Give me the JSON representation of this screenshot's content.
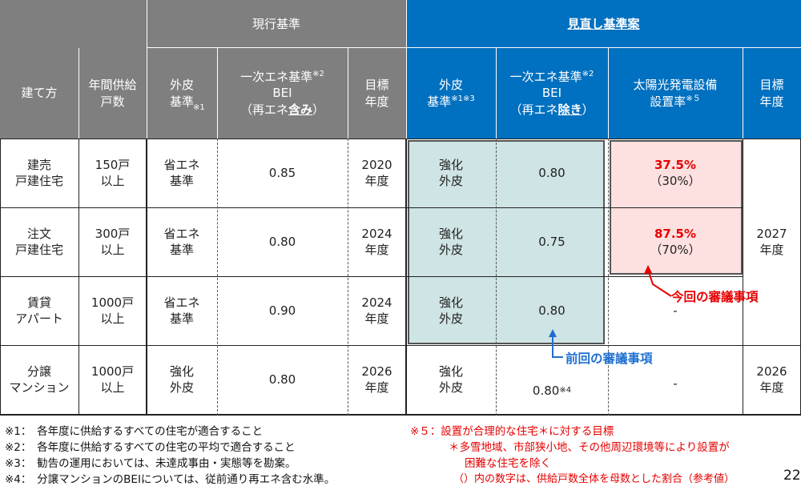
{
  "header": {
    "current_group": "現行基準",
    "revised_group": "見直し基準案",
    "cols": {
      "build_type": "建て方",
      "annual_supply": "年間供給\n戸数",
      "envelope_current": "外皮\n基準",
      "envelope_current_sup": "※1",
      "primary_energy_current_l1": "一次エネ基準",
      "primary_energy_current_sup": "※2",
      "primary_energy_current_l2": "BEI",
      "primary_energy_current_l3_pre": "（再エネ",
      "primary_energy_current_l3_em": "含み",
      "primary_energy_current_l3_post": "）",
      "target_year_current": "目標\n年度",
      "envelope_revised": "外皮\n基準",
      "envelope_revised_sup": "※1※3",
      "primary_energy_revised_l1": "一次エネ基準",
      "primary_energy_revised_sup": "※2",
      "primary_energy_revised_l2": "BEI",
      "primary_energy_revised_l3_pre": "（再エネ",
      "primary_energy_revised_l3_em": "除き",
      "primary_energy_revised_l3_post": "）",
      "solar_rate_l1": "太陽光発電設備",
      "solar_rate_l2": "設置率",
      "solar_rate_sup": "※５",
      "target_year_revised": "目標\n年度"
    }
  },
  "rows": [
    {
      "type": "建売\n戸建住宅",
      "supply": "150戸\n以上",
      "env_cur": "省エネ\n基準",
      "bei_cur": "0.85",
      "year_cur": "2020\n年度",
      "env_rev": "強化\n外皮",
      "bei_rev": "0.80",
      "solar": "37.5%",
      "solar_sub": "（30%）"
    },
    {
      "type": "注文\n戸建住宅",
      "supply": "300戸\n以上",
      "env_cur": "省エネ\n基準",
      "bei_cur": "0.80",
      "year_cur": "2024\n年度",
      "env_rev": "強化\n外皮",
      "bei_rev": "0.75",
      "solar": "87.5%",
      "solar_sub": "（70%）"
    },
    {
      "type": "賃貸\nアパート",
      "supply": "1000戸\n以上",
      "env_cur": "省エネ\n基準",
      "bei_cur": "0.90",
      "year_cur": "2024\n年度",
      "env_rev": "強化\n外皮",
      "bei_rev": "0.80",
      "solar": "-",
      "solar_sub": ""
    },
    {
      "type": "分譲\nマンション",
      "supply": "1000戸\n以上",
      "env_cur": "強化\n外皮",
      "bei_cur": "0.80",
      "year_cur": "2026\n年度",
      "env_rev": "強化\n外皮",
      "bei_rev": "0.80",
      "bei_rev_sup": "※4",
      "solar": "-",
      "solar_sub": ""
    }
  ],
  "merged_year_rev_top": "2027\n年度",
  "year_rev_bottom": "2026\n年度",
  "callout_current": "今回の審議事項",
  "callout_previous": "前回の審議事項",
  "notes_left": [
    "※1：　各年度に供給するすべての住宅が適合すること",
    "※2：　各年度に供給するすべての住宅の平均で適合すること",
    "※3：　勧告の運用においては、未達成事由・実態等を勘案。",
    "※4：　分譲マンションのBEIについては、従前通り再エネ含む水準。"
  ],
  "notes_right": [
    "※５：設置が合理的な住宅＊に対する目標",
    "＊多雪地域、市部狭小地、その他周辺環境等により設置が",
    "困難な住宅を除く",
    "（）内の数字は、供給戸数全体を母数とした割合（参考値）"
  ],
  "page_number": "22"
}
